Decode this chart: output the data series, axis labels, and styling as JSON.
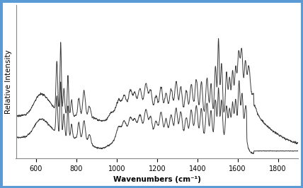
{
  "xlabel": "Wavenumbers (cm⁻¹)",
  "ylabel": "Relative Intensity",
  "xlim": [
    500,
    1900
  ],
  "xticks": [
    600,
    800,
    1000,
    1200,
    1400,
    1600,
    1800
  ],
  "line_color": "#3a3a3a",
  "background_color": "#ffffff",
  "border_color": "#5b9bd5",
  "border_width": 2.5,
  "noise_seed": 7
}
